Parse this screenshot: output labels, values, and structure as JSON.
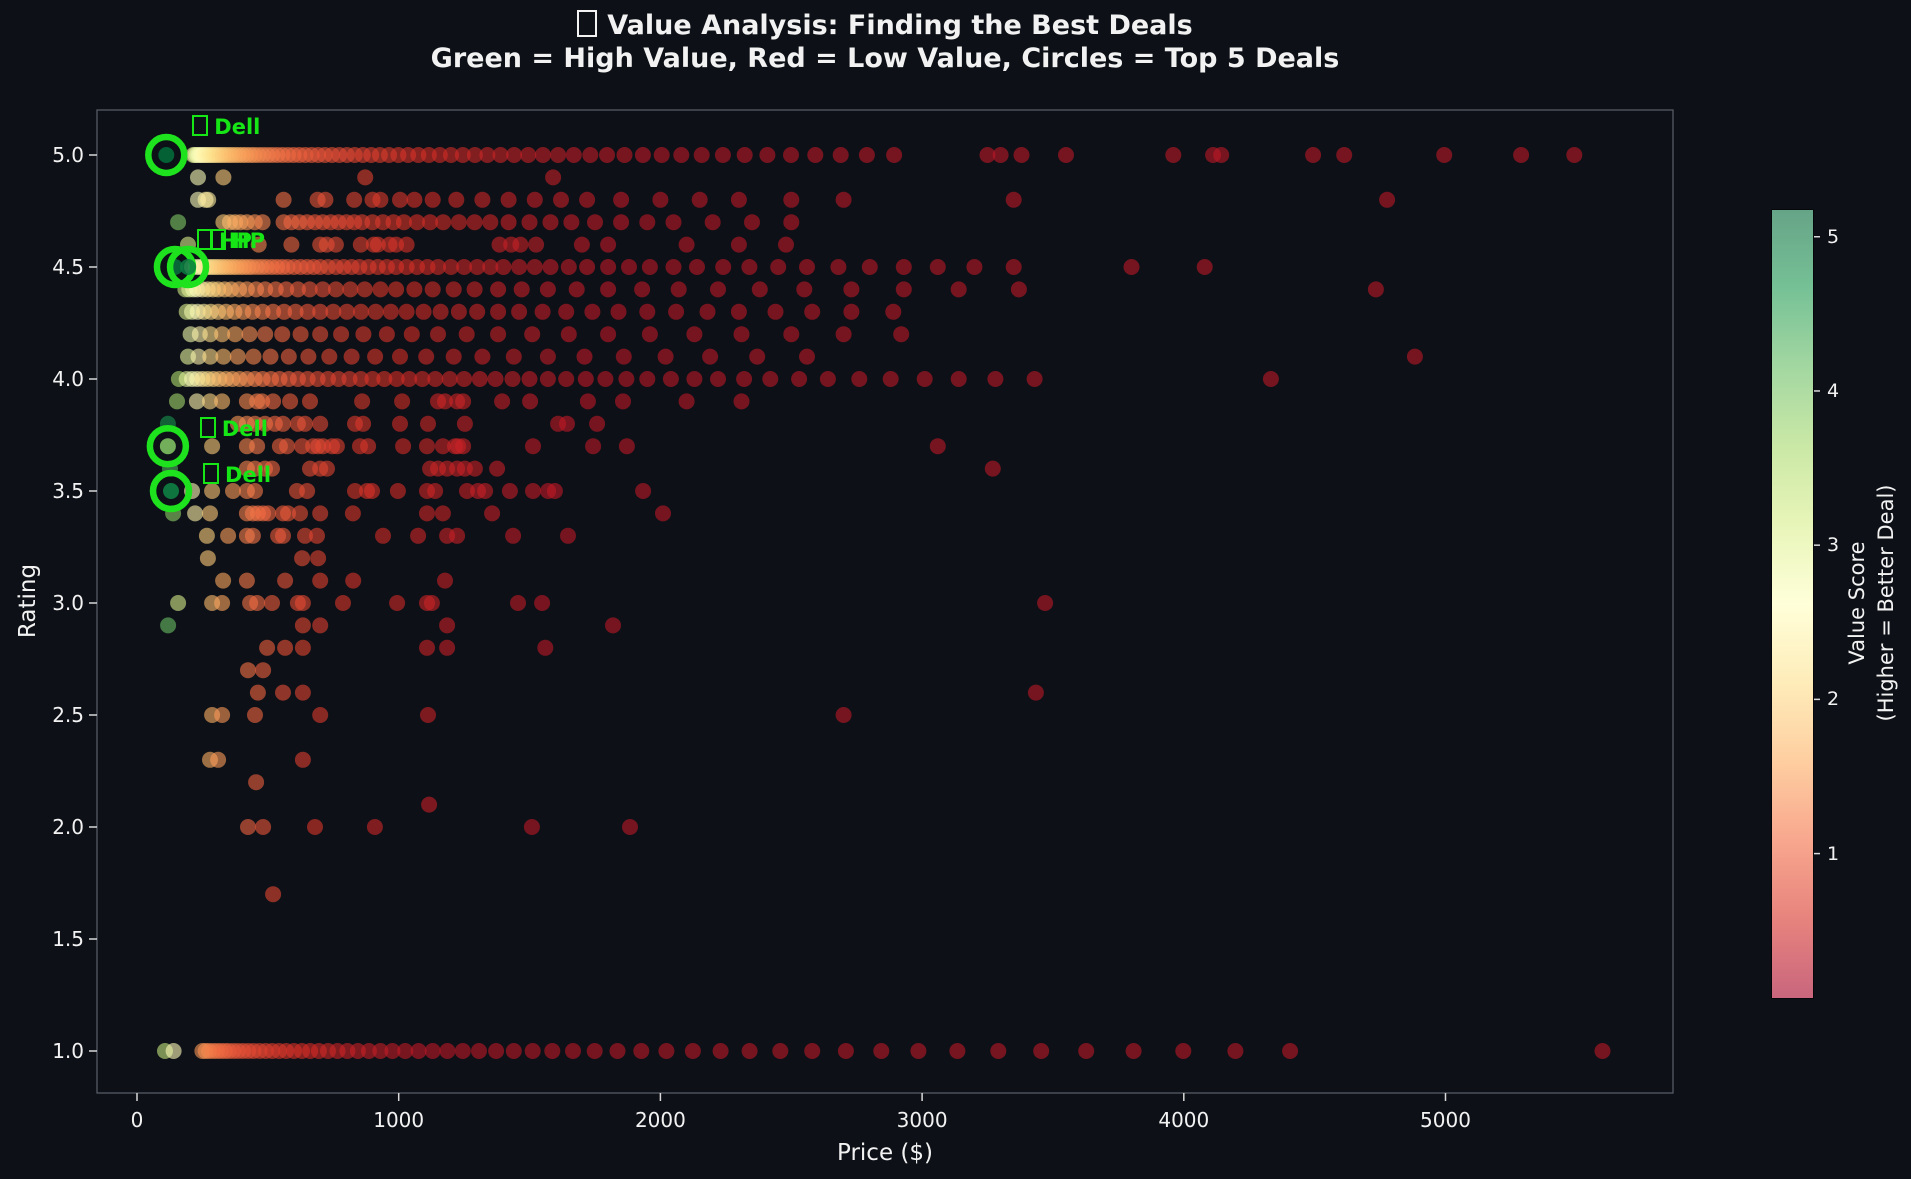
{
  "title": {
    "line1": "Value Analysis: Finding the Best Deals",
    "line1_has_missing_glyph_prefix": true,
    "line2": "Green = High Value, Red = Low Value, Circles = Top 5 Deals"
  },
  "x_axis": {
    "label": "Price ($)",
    "ticks": [
      0,
      1000,
      2000,
      3000,
      4000,
      5000
    ]
  },
  "y_axis": {
    "label": "Rating",
    "ticks": [
      "5.0",
      "4.5",
      "4.0",
      "3.5",
      "3.0",
      "2.5",
      "2.0",
      "1.5",
      "1.0"
    ]
  },
  "colorbar": {
    "label_line1": "Value Score",
    "label_line2": "(Higher = Better Deal)",
    "ticks": [
      5,
      4,
      3,
      2,
      1
    ],
    "value_range": [
      0.07,
      5.18
    ],
    "colormap": "RdYlGn",
    "colormap_stops": [
      "#a50026",
      "#d73027",
      "#f46d43",
      "#fdae61",
      "#fee08b",
      "#ffffbf",
      "#d9ef8b",
      "#a6d96a",
      "#66bd63",
      "#1a9850",
      "#006837"
    ],
    "alpha": 0.6
  },
  "colors": {
    "background": "#0d1117",
    "text": "#f2f2f2",
    "spine": "#565b63",
    "tick_mark": "#d8d8d8",
    "deal_highlight": "#1de21d",
    "annotation_text": "#16e516"
  },
  "chart_data": {
    "type": "scatter",
    "title": "Value Analysis: Finding the Best Deals",
    "subtitle": "Green = High Value, Red = Low Value, Circles = Top 5 Deals",
    "xlabel": "Price ($)",
    "ylabel": "Rating",
    "xlim": [
      -153,
      5870
    ],
    "ylim": [
      0.79,
      5.2
    ],
    "point_alpha": 0.6,
    "point_radius_px": 8,
    "value_score_formula": "clamp(640/price * (0.45 + 0.11*rating), 0.32, 5.18)",
    "series": [
      {
        "rating": 5.0,
        "prices": [
          215,
          222,
          230,
          238,
          246,
          254,
          262,
          270,
          279,
          288,
          297,
          307,
          317,
          328,
          339,
          351,
          363,
          376,
          389,
          403,
          417,
          432,
          448,
          464,
          481,
          499,
          517,
          536,
          556,
          577,
          598,
          620,
          643,
          667,
          692,
          718,
          745,
          773,
          802,
          832,
          863,
          895,
          928,
          963,
          999,
          1036,
          1075,
          1115,
          1157,
          1200,
          1245,
          1291,
          1339,
          1389,
          1441,
          1495,
          1551,
          1609,
          1669,
          1732,
          1796,
          1863,
          1933,
          2005,
          2080,
          2158,
          2239,
          2322,
          2409,
          2499,
          2592,
          2689,
          2789,
          2893,
          3250,
          3300,
          3380,
          3550,
          3960,
          4112,
          4143,
          4494,
          4613,
          4995,
          5289,
          5492
        ]
      },
      {
        "rating": 4.9,
        "prices": [
          233,
          330,
          872,
          1590
        ]
      },
      {
        "rating": 4.8,
        "prices": [
          233,
          262,
          272,
          560,
          690,
          720,
          830,
          900,
          930,
          1005,
          1060,
          1130,
          1220,
          1320,
          1420,
          1520,
          1620,
          1720,
          1850,
          2000,
          2150,
          2300,
          2500,
          2700,
          3350,
          4777
        ]
      },
      {
        "rating": 4.7,
        "prices": [
          157,
          330,
          355,
          375,
          395,
          420,
          450,
          480,
          560,
          590,
          620,
          650,
          680,
          710,
          740,
          770,
          800,
          830,
          860,
          900,
          940,
          980,
          1020,
          1070,
          1120,
          1170,
          1230,
          1290,
          1350,
          1420,
          1500,
          1580,
          1660,
          1750,
          1850,
          1950,
          2050,
          2200,
          2350,
          2500
        ]
      },
      {
        "rating": 4.6,
        "prices": [
          195,
          465,
          590,
          700,
          725,
          760,
          855,
          905,
          920,
          965,
          990,
          1030,
          1385,
          1430,
          1465,
          1525,
          1700,
          1800,
          2100,
          2300,
          2480
        ]
      },
      {
        "rating": 4.5,
        "prices": [
          210,
          225,
          240,
          252,
          264,
          276,
          288,
          300,
          312,
          325,
          338,
          352,
          366,
          380,
          395,
          410,
          425,
          440,
          458,
          476,
          495,
          515,
          535,
          555,
          575,
          600,
          625,
          650,
          675,
          700,
          730,
          760,
          790,
          820,
          850,
          885,
          920,
          955,
          990,
          1030,
          1070,
          1110,
          1150,
          1200,
          1250,
          1300,
          1350,
          1400,
          1460,
          1520,
          1580,
          1650,
          1720,
          1800,
          1880,
          1960,
          2050,
          2140,
          2240,
          2340,
          2450,
          2560,
          2680,
          2800,
          2930,
          3060,
          3200,
          3350,
          3800,
          4080
        ]
      },
      {
        "rating": 4.4,
        "prices": [
          185,
          200,
          215,
          230,
          250,
          270,
          290,
          310,
          335,
          360,
          390,
          420,
          455,
          490,
          530,
          570,
          615,
          660,
          710,
          760,
          815,
          870,
          930,
          990,
          1060,
          1130,
          1210,
          1290,
          1380,
          1470,
          1570,
          1680,
          1800,
          1930,
          2070,
          2220,
          2380,
          2550,
          2730,
          2930,
          3140,
          3370,
          4734
        ]
      },
      {
        "rating": 4.3,
        "prices": [
          190,
          210,
          232,
          256,
          282,
          310,
          340,
          372,
          406,
          442,
          480,
          520,
          562,
          606,
          652,
          700,
          750,
          802,
          856,
          912,
          970,
          1030,
          1095,
          1160,
          1230,
          1300,
          1380,
          1460,
          1550,
          1640,
          1740,
          1840,
          1950,
          2060,
          2180,
          2300,
          2440,
          2580,
          2730,
          2890
        ]
      },
      {
        "rating": 4.2,
        "prices": [
          205,
          240,
          280,
          325,
          375,
          430,
          490,
          555,
          625,
          700,
          780,
          865,
          955,
          1050,
          1150,
          1260,
          1380,
          1510,
          1650,
          1800,
          1960,
          2130,
          2310,
          2500,
          2700,
          2920
        ]
      },
      {
        "rating": 4.1,
        "prices": [
          195,
          235,
          280,
          330,
          385,
          445,
          510,
          580,
          655,
          735,
          820,
          910,
          1005,
          1105,
          1210,
          1320,
          1440,
          1570,
          1710,
          1860,
          2020,
          2190,
          2370,
          2560,
          4883
        ]
      },
      {
        "rating": 4.0,
        "prices": [
          160,
          190,
          210,
          230,
          250,
          270,
          292,
          315,
          340,
          365,
          392,
          420,
          450,
          480,
          512,
          545,
          580,
          615,
          652,
          690,
          730,
          770,
          812,
          855,
          900,
          945,
          992,
          1040,
          1090,
          1140,
          1195,
          1250,
          1310,
          1370,
          1435,
          1500,
          1570,
          1640,
          1715,
          1790,
          1870,
          1950,
          2040,
          2130,
          2220,
          2320,
          2420,
          2530,
          2640,
          2760,
          2880,
          3010,
          3140,
          3280,
          3430,
          4333
        ]
      },
      {
        "rating": 3.9,
        "prices": [
          153,
          229,
          279,
          325,
          420,
          459,
          478,
          520,
          585,
          661,
          860,
          1013,
          1150,
          1177,
          1223,
          1246,
          1395,
          1502,
          1723,
          1857,
          2100,
          2310
        ]
      },
      {
        "rating": 3.8,
        "prices": [
          118,
          386,
          420,
          451,
          489,
          527,
          558,
          615,
          642,
          700,
          833,
          864,
          1005,
          1112,
          1253,
          1609,
          1643,
          1758
        ]
      },
      {
        "rating": 3.7,
        "prices": [
          287,
          420,
          459,
          546,
          573,
          631,
          673,
          692,
          711,
          745,
          764,
          852,
          883,
          1017,
          1108,
          1169,
          1215,
          1227,
          1246,
          1513,
          1743,
          1872,
          3060
        ]
      },
      {
        "rating": 3.6,
        "prices": [
          126,
          420,
          451,
          489,
          516,
          661,
          700,
          726,
          1120,
          1150,
          1185,
          1223,
          1253,
          1291,
          1376,
          3270
        ]
      },
      {
        "rating": 3.5,
        "prices": [
          210,
          287,
          367,
          420,
          451,
          611,
          650,
          833,
          879,
          898,
          997,
          1108,
          1139,
          1261,
          1303,
          1330,
          1425,
          1513,
          1571,
          1597,
          1934
        ]
      },
      {
        "rating": 3.4,
        "prices": [
          138,
          222,
          279,
          420,
          443,
          462,
          482,
          501,
          558,
          577,
          623,
          700,
          825,
          1108,
          1169,
          1357,
          2010
        ]
      },
      {
        "rating": 3.3,
        "prices": [
          267,
          348,
          420,
          443,
          539,
          558,
          642,
          688,
          940,
          1074,
          1185,
          1223,
          1437,
          1647
        ]
      },
      {
        "rating": 3.2,
        "prices": [
          271,
          631,
          692
        ]
      },
      {
        "rating": 3.1,
        "prices": [
          329,
          420,
          566,
          700,
          826,
          1177
        ]
      },
      {
        "rating": 3.0,
        "prices": [
          157,
          287,
          325,
          432,
          459,
          516,
          615,
          634,
          787,
          994,
          1108,
          1127,
          1456,
          1548,
          3470
        ]
      },
      {
        "rating": 2.9,
        "prices": [
          119,
          634,
          700,
          1185,
          1819
        ]
      },
      {
        "rating": 2.8,
        "prices": [
          497,
          566,
          634,
          1108,
          1185,
          1560
        ]
      },
      {
        "rating": 2.7,
        "prices": [
          424,
          482
        ]
      },
      {
        "rating": 2.6,
        "prices": [
          462,
          558,
          634,
          3435
        ]
      },
      {
        "rating": 2.5,
        "prices": [
          287,
          325,
          451,
          700,
          1112,
          2700
        ]
      },
      {
        "rating": 2.3,
        "prices": [
          279,
          310,
          634
        ]
      },
      {
        "rating": 2.2,
        "prices": [
          455
        ]
      },
      {
        "rating": 2.1,
        "prices": [
          1116
        ]
      },
      {
        "rating": 2.0,
        "prices": [
          424,
          482,
          680,
          909,
          1509,
          1884
        ]
      },
      {
        "rating": 1.7,
        "prices": [
          520
        ]
      },
      {
        "rating": 1.0,
        "prices": [
          107,
          140,
          250,
          262,
          275,
          290,
          305,
          320,
          335,
          350,
          368,
          386,
          405,
          425,
          445,
          468,
          492,
          517,
          543,
          570,
          600,
          630,
          662,
          695,
          730,
          766,
          804,
          844,
          886,
          930,
          976,
          1025,
          1076,
          1130,
          1186,
          1245,
          1307,
          1372,
          1440,
          1512,
          1587,
          1666,
          1749,
          1836,
          1927,
          2023,
          2124,
          2230,
          2341,
          2458,
          2580,
          2709,
          2844,
          2986,
          3135,
          3291,
          3455,
          3627,
          3808,
          3998,
          4197,
          4406,
          5600
        ]
      }
    ],
    "top_deals": [
      {
        "brand": "Dell",
        "price": 112,
        "rating": 5.0,
        "value_score": 5.1,
        "label_offset": [
          26,
          -28
        ]
      },
      {
        "brand": "HP",
        "price": 145,
        "rating": 4.5,
        "value_score": 5.05,
        "label_offset": [
          22,
          -26
        ]
      },
      {
        "brand": "HP",
        "price": 195,
        "rating": 4.5,
        "value_score": 4.95,
        "label_offset": [
          22,
          -26
        ]
      },
      {
        "brand": "Dell",
        "price": 118,
        "rating": 3.7,
        "value_score": 3.9,
        "label_offset": [
          32,
          -17
        ]
      },
      {
        "brand": "Dell",
        "price": 130,
        "rating": 3.5,
        "value_score": 4.85,
        "label_offset": [
          32,
          -16
        ]
      }
    ]
  }
}
